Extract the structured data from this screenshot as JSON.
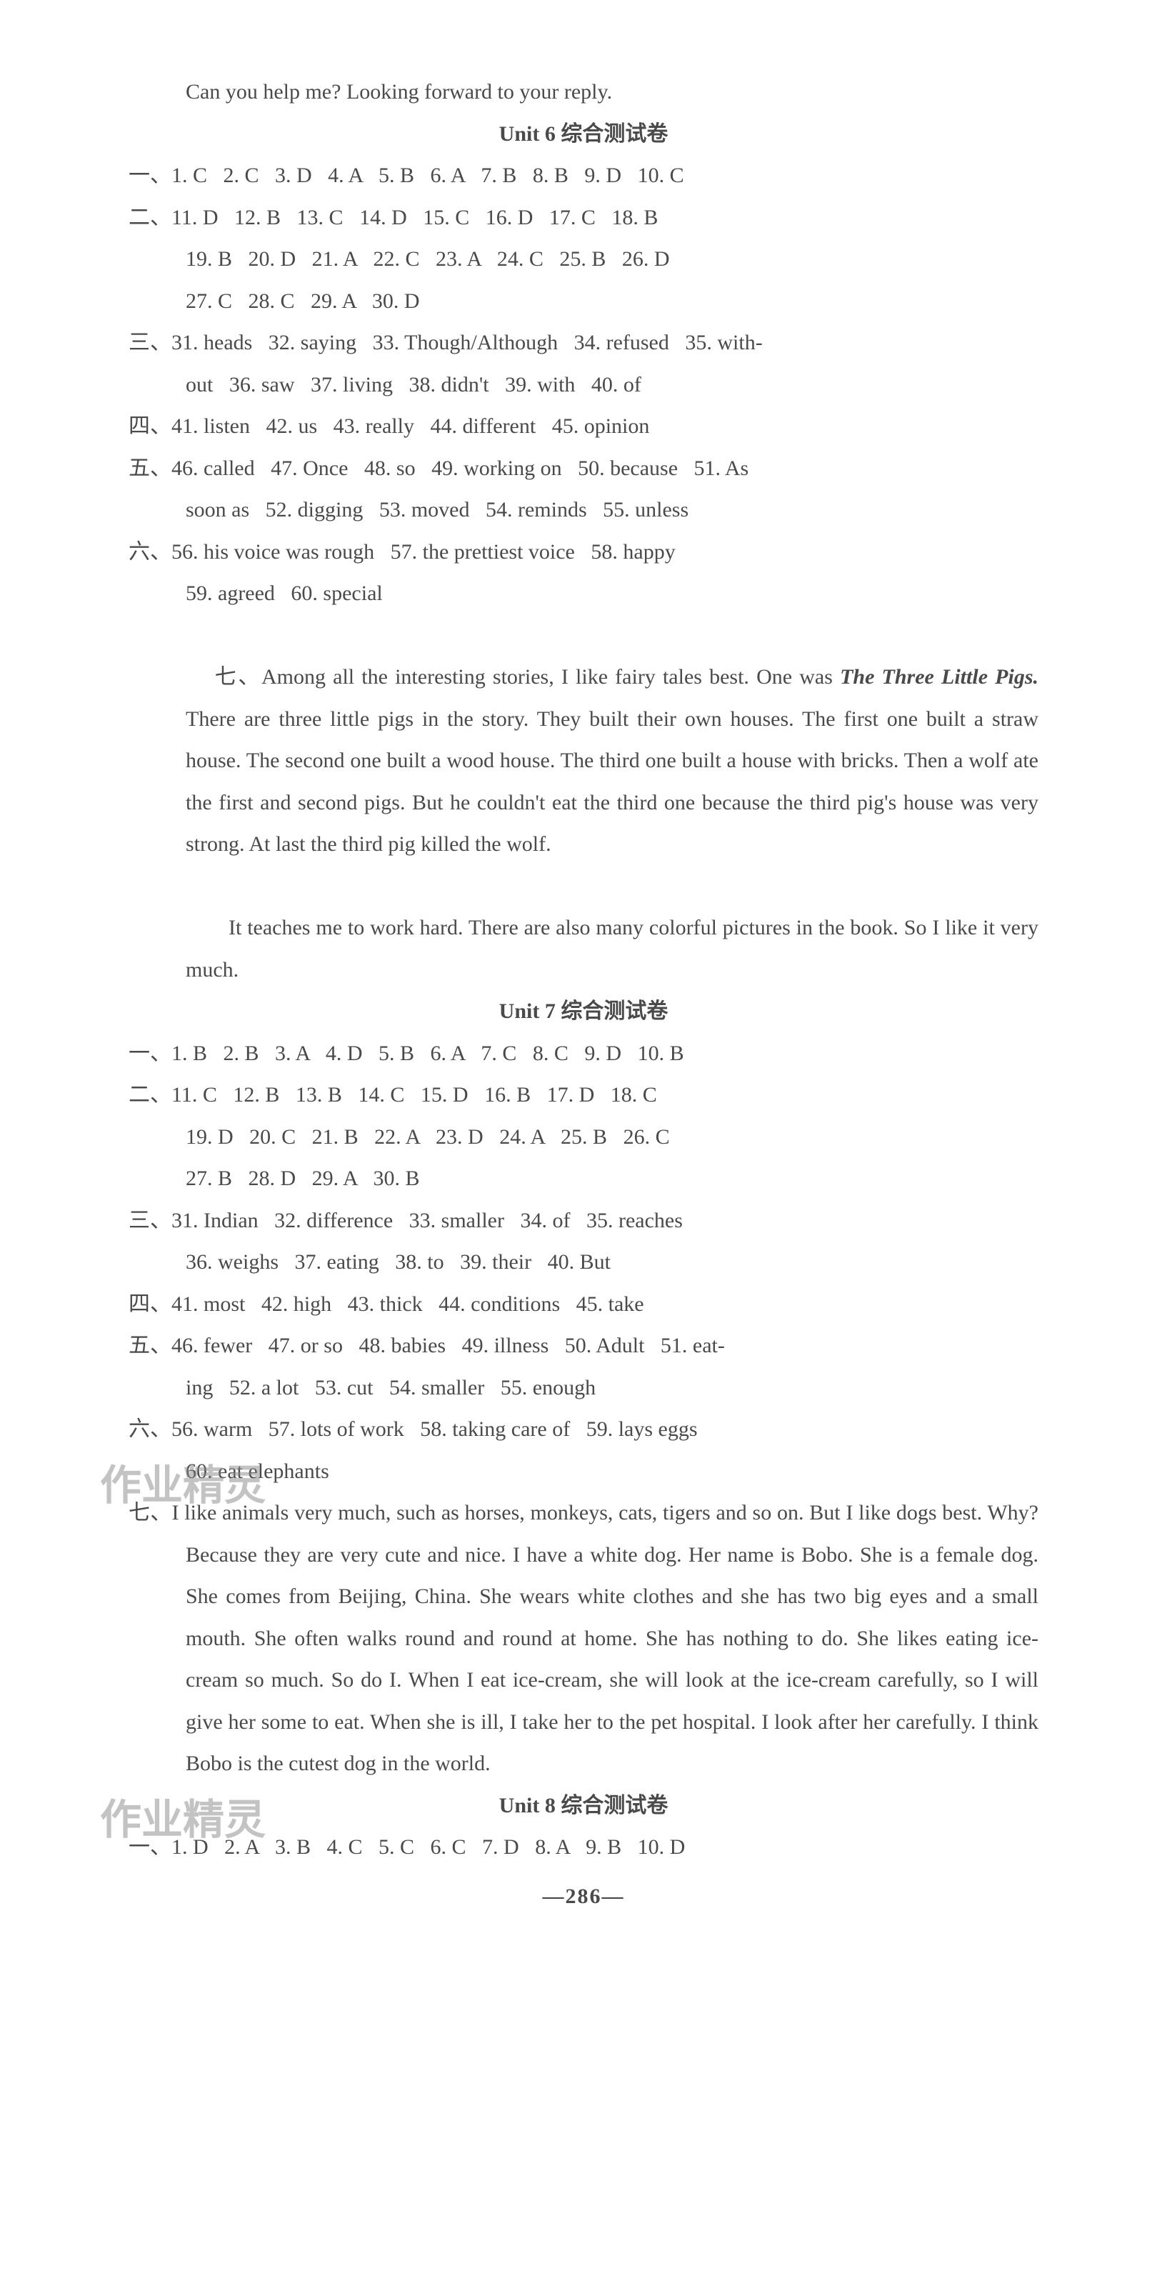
{
  "top_line": "Can you help me? Looking forward to your reply.",
  "unit6": {
    "title": "Unit 6 综合测试卷",
    "s1": "一、1. C   2. C   3. D   4. A   5. B   6. A   7. B   8. B   9. D   10. C",
    "s2a": "二、11. D   12. B   13. C   14. D   15. C   16. D   17. C   18. B",
    "s2b": "19. B   20. D   21. A   22. C   23. A   24. C   25. B   26. D",
    "s2c": "27. C   28. C   29. A   30. D",
    "s3a": "三、31. heads   32. saying   33. Though/Although   34. refused   35. with-",
    "s3b": "out   36. saw   37. living   38. didn't   39. with   40. of",
    "s4": "四、41. listen   42. us   43. really   44. different   45. opinion",
    "s5a": "五、46. called   47. Once   48. so   49. working on   50. because   51. As",
    "s5b": "soon as   52. digging   53. moved   54. reminds   55. unless",
    "s6a": "六、56. his voice was rough   57. the prettiest voice   58. happy",
    "s6b": "59. agreed   60. special",
    "s7a": "七、Among all the interesting stories, I like fairy tales best. One was ",
    "s7b_italic": "The Three Little Pigs.",
    "s7b_rest": " There are three little pigs in the story. They built their own houses. The first one built a straw house. The second one built a wood house. The third one built a house with bricks. Then a wolf ate the first and second pigs. But he couldn't eat the third one because the third pig's house was very strong. At last the third pig killed the wolf.",
    "s7c": "It teaches me to work hard. There are also many colorful pictures in the book. So I like it very much."
  },
  "unit7": {
    "title": "Unit 7 综合测试卷",
    "s1": "一、1. B   2. B   3. A   4. D   5. B   6. A   7. C   8. C   9. D   10. B",
    "s2a": "二、11. C   12. B   13. B   14. C   15. D   16. B   17. D   18. C",
    "s2b": "19. D   20. C   21. B   22. A   23. D   24. A   25. B   26. C",
    "s2c": "27. B   28. D   29. A   30. B",
    "s3a": "三、31. Indian   32. difference   33. smaller   34. of   35. reaches",
    "s3b": "36. weighs   37. eating   38. to   39. their   40. But",
    "s4": "四、41. most   42. high   43. thick   44. conditions   45. take",
    "s5a": "五、46. fewer   47. or so   48. babies   49. illness   50. Adult   51. eat-",
    "s5b": "ing   52. a lot   53. cut   54. smaller   55. enough",
    "s6a": "六、56. warm   57. lots of work   58. taking care of   59. lays eggs",
    "s6b": "60. eat elephants",
    "s7a": "七、I like animals very much, such as horses, monkeys, cats, tigers and so on. But I like dogs best. Why? Because they are very cute and nice. I have a white dog. Her name is Bobo. She is a female dog. She comes from Beijing, China. She wears white clothes and she has two big eyes and a small mouth. She often walks round and round at home. She has nothing to do. She likes eating ice-cream so much. So do I. When I eat ice-cream, she will look at the ice-cream carefully, so I will give her some to eat. When she is ill, I take her to the pet hospital. I look after her carefully. I think Bobo is the cutest dog in the world."
  },
  "unit8": {
    "title": "Unit 8 综合测试卷",
    "s1": "一、1. D   2. A   3. B   4. C   5. C   6. C   7. D   8. A   9. B   10. D"
  },
  "watermark_text": "作业精灵",
  "page_number": "—286—"
}
